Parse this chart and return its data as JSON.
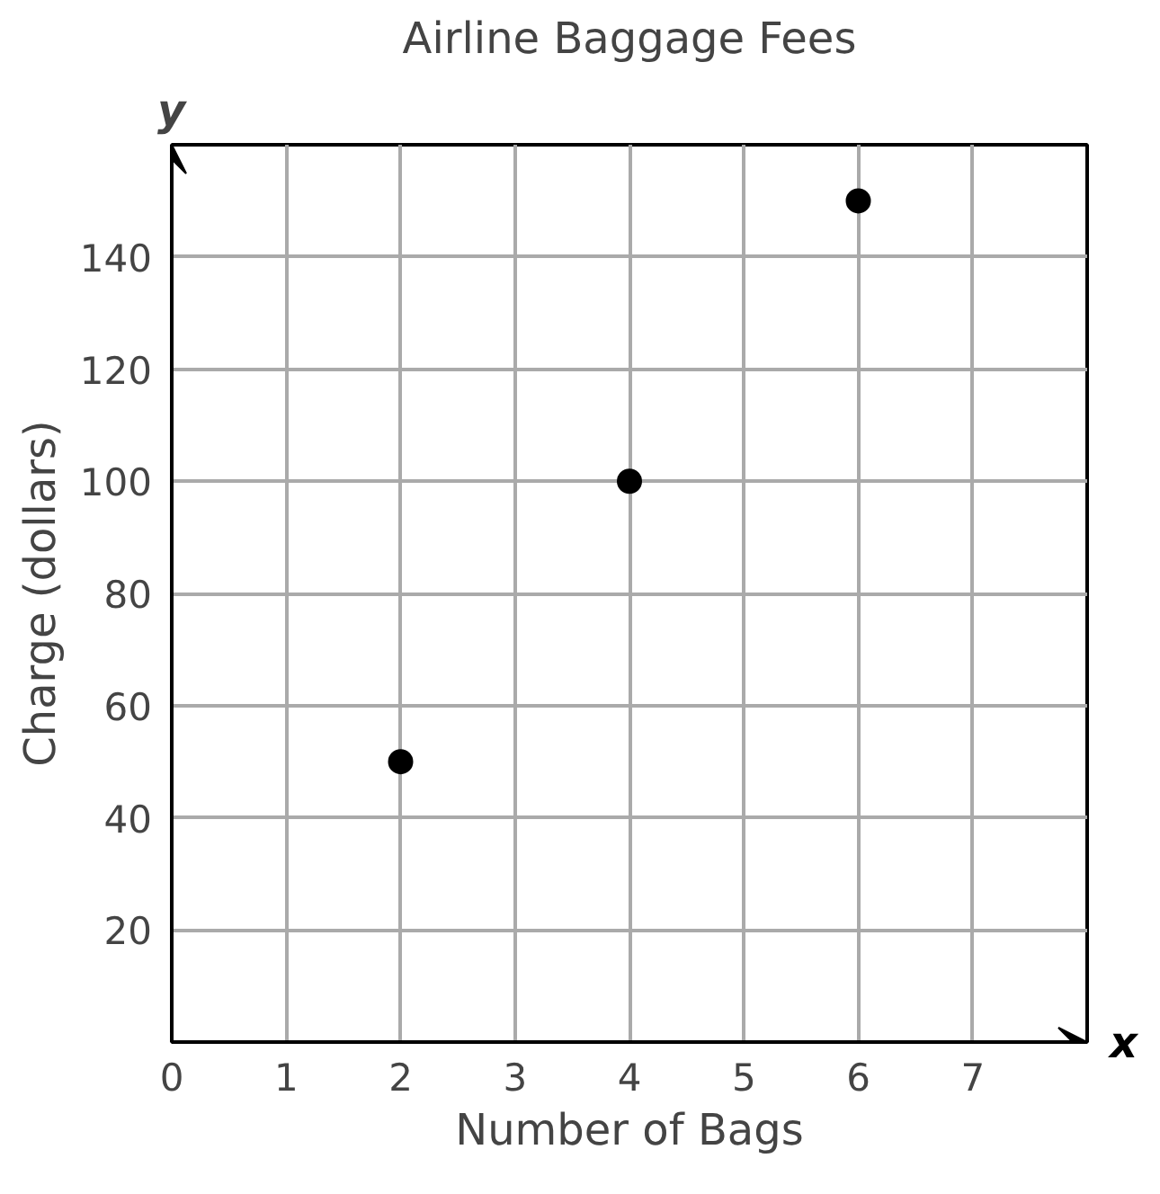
{
  "chart_data": {
    "type": "scatter",
    "title": "Airline Baggage Fees",
    "xlabel": "Number of Bags",
    "ylabel": "Charge (dollars)",
    "x": [
      2,
      4,
      6
    ],
    "series": [
      {
        "color": "#000000",
        "values": [
          50,
          100,
          150
        ]
      }
    ],
    "xlim": [
      0,
      8
    ],
    "ylim": [
      0,
      160
    ],
    "xticks": [
      0,
      1,
      2,
      3,
      4,
      5,
      6,
      7
    ],
    "yticks": [
      {
        "value": 0,
        "label": null
      },
      20,
      40,
      60,
      80,
      100,
      120,
      140,
      {
        "value": 160,
        "label": null
      }
    ],
    "grid": true,
    "marker": "circle",
    "annotations": [
      "x",
      "y"
    ]
  }
}
